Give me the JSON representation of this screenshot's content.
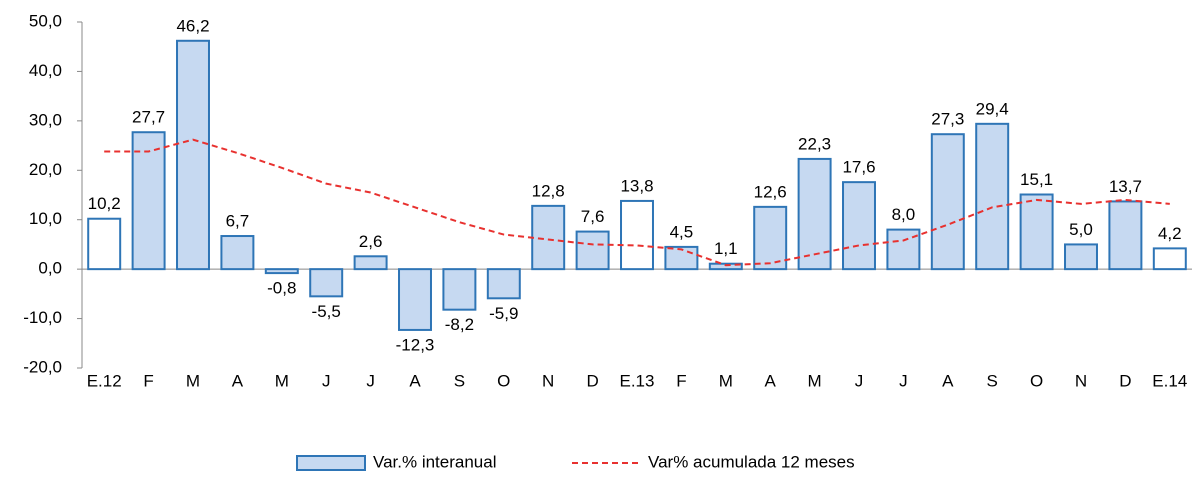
{
  "chart_data": {
    "type": "bar",
    "categories": [
      "E.12",
      "F",
      "M",
      "A",
      "M",
      "J",
      "J",
      "A",
      "S",
      "O",
      "N",
      "D",
      "E.13",
      "F",
      "M",
      "A",
      "M",
      "J",
      "J",
      "A",
      "S",
      "O",
      "N",
      "D",
      "E.14"
    ],
    "series": [
      {
        "name": "Var.% interanual",
        "type": "bar",
        "color": "#c6d9f1",
        "edge_color": "#2e75b6",
        "point_colors": [
          "#ffffff",
          "#c6d9f1",
          "#c6d9f1",
          "#c6d9f1",
          "#c6d9f1",
          "#c6d9f1",
          "#c6d9f1",
          "#c6d9f1",
          "#c6d9f1",
          "#c6d9f1",
          "#c6d9f1",
          "#c6d9f1",
          "#ffffff",
          "#c6d9f1",
          "#c6d9f1",
          "#c6d9f1",
          "#c6d9f1",
          "#c6d9f1",
          "#c6d9f1",
          "#c6d9f1",
          "#c6d9f1",
          "#c6d9f1",
          "#c6d9f1",
          "#c6d9f1",
          "#ffffff"
        ],
        "values": [
          10.2,
          27.7,
          46.2,
          6.7,
          -0.8,
          -5.5,
          2.6,
          -12.3,
          -8.2,
          -5.9,
          12.8,
          7.6,
          13.8,
          4.5,
          1.1,
          12.6,
          22.3,
          17.6,
          8.0,
          27.3,
          29.4,
          15.1,
          5.0,
          13.7,
          4.2
        ],
        "value_labels": [
          "10,2",
          "27,7",
          "46,2",
          "6,7",
          "-0,8",
          "-5,5",
          "2,6",
          "-12,3",
          "-8,2",
          "-5,9",
          "12,8",
          "7,6",
          "13,8",
          "4,5",
          "1,1",
          "12,6",
          "22,3",
          "17,6",
          "8,0",
          "27,3",
          "29,4",
          "15,1",
          "5,0",
          "13,7",
          "4,2"
        ]
      },
      {
        "name": "Var% acumulada 12 meses",
        "type": "line",
        "color": "#e8312f",
        "dashed": true,
        "values": [
          23.8,
          23.8,
          26.2,
          23.5,
          20.5,
          17.3,
          15.5,
          12.5,
          9.5,
          7.0,
          6.0,
          5.0,
          4.8,
          4.0,
          0.8,
          1.2,
          3.0,
          4.8,
          5.8,
          9.0,
          12.5,
          14.0,
          13.2,
          14.0,
          13.2
        ]
      }
    ],
    "ylim": [
      -20,
      50
    ],
    "yticks": [
      {
        "value": -20,
        "label": "-20,0"
      },
      {
        "value": -10,
        "label": "-10,0"
      },
      {
        "value": 0,
        "label": "0,0"
      },
      {
        "value": 10,
        "label": "10,0"
      },
      {
        "value": 20,
        "label": "20,0"
      },
      {
        "value": 30,
        "label": "30,0"
      },
      {
        "value": 40,
        "label": "40,0"
      },
      {
        "value": 50,
        "label": "50,0"
      }
    ],
    "legend": "bottom"
  }
}
